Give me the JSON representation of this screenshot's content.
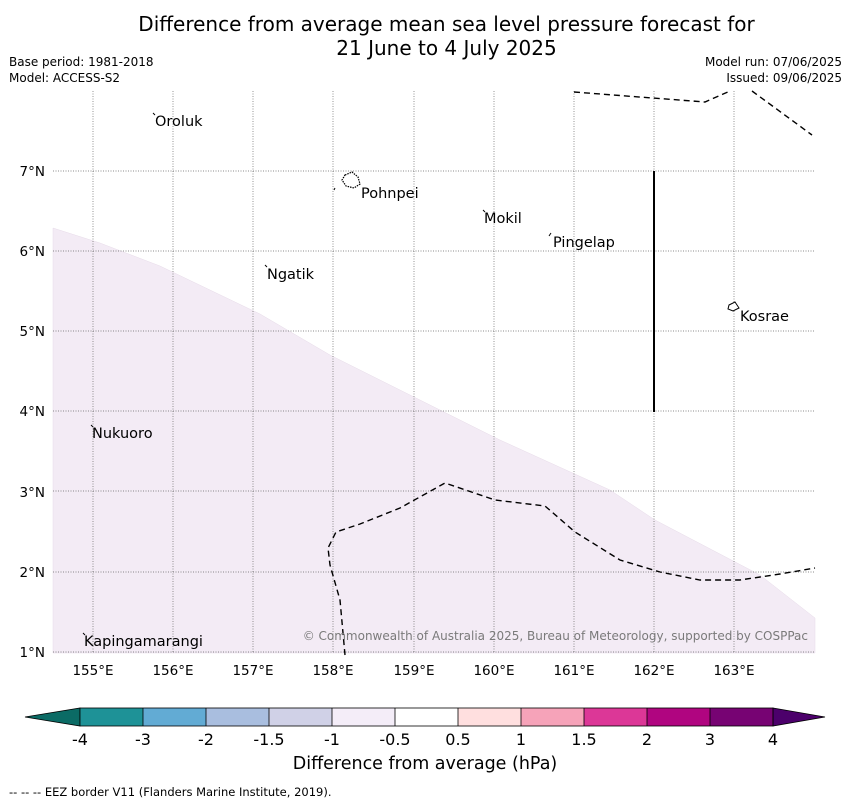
{
  "title": {
    "line1": "Difference from average mean sea level pressure forecast for",
    "line2": "21 June to 4 July 2025"
  },
  "meta_left": {
    "base_period": "Base period: 1981-2018",
    "model": "Model: ACCESS-S2"
  },
  "meta_right": {
    "model_run": "Model run: 07/06/2025",
    "issued": "Issued: 09/06/2025"
  },
  "map": {
    "lat_labels": [
      "7°N",
      "6°N",
      "5°N",
      "4°N",
      "3°N",
      "2°N",
      "1°N"
    ],
    "lon_labels": [
      "155°E",
      "156°E",
      "157°E",
      "158°E",
      "159°E",
      "160°E",
      "161°E",
      "162°E",
      "163°E"
    ],
    "places": [
      {
        "name": "Oroluk"
      },
      {
        "name": "Pohnpei"
      },
      {
        "name": "Mokil"
      },
      {
        "name": "Pingelap"
      },
      {
        "name": "Ngatik"
      },
      {
        "name": "Kosrae"
      },
      {
        "name": "Nukuoro"
      },
      {
        "name": "Kapingamarangi"
      }
    ],
    "copyright": "© Commonwealth of Australia 2025, Bureau of Meteorology, supported by COSPPac",
    "anomaly_fill_color": "#f3ebf5",
    "eez_border_style": "dashed black"
  },
  "colorbar": {
    "title": "Difference from average (hPa)",
    "tick_labels": [
      "-4",
      "-3",
      "-2",
      "-1.5",
      "-1",
      "-0.5",
      "0.5",
      "1",
      "1.5",
      "2",
      "3",
      "4"
    ],
    "colors": [
      "#0b6b65",
      "#1e9297",
      "#62abd4",
      "#a9bedf",
      "#d0d1e7",
      "#f4edf8",
      "#ffffff",
      "#ffdfdf",
      "#f6a3b9",
      "#dc3797",
      "#b00580",
      "#770373",
      "#4c006b"
    ]
  },
  "footer": "--  --  -- EEZ border V11 (Flanders Marine Institute, 2019)."
}
